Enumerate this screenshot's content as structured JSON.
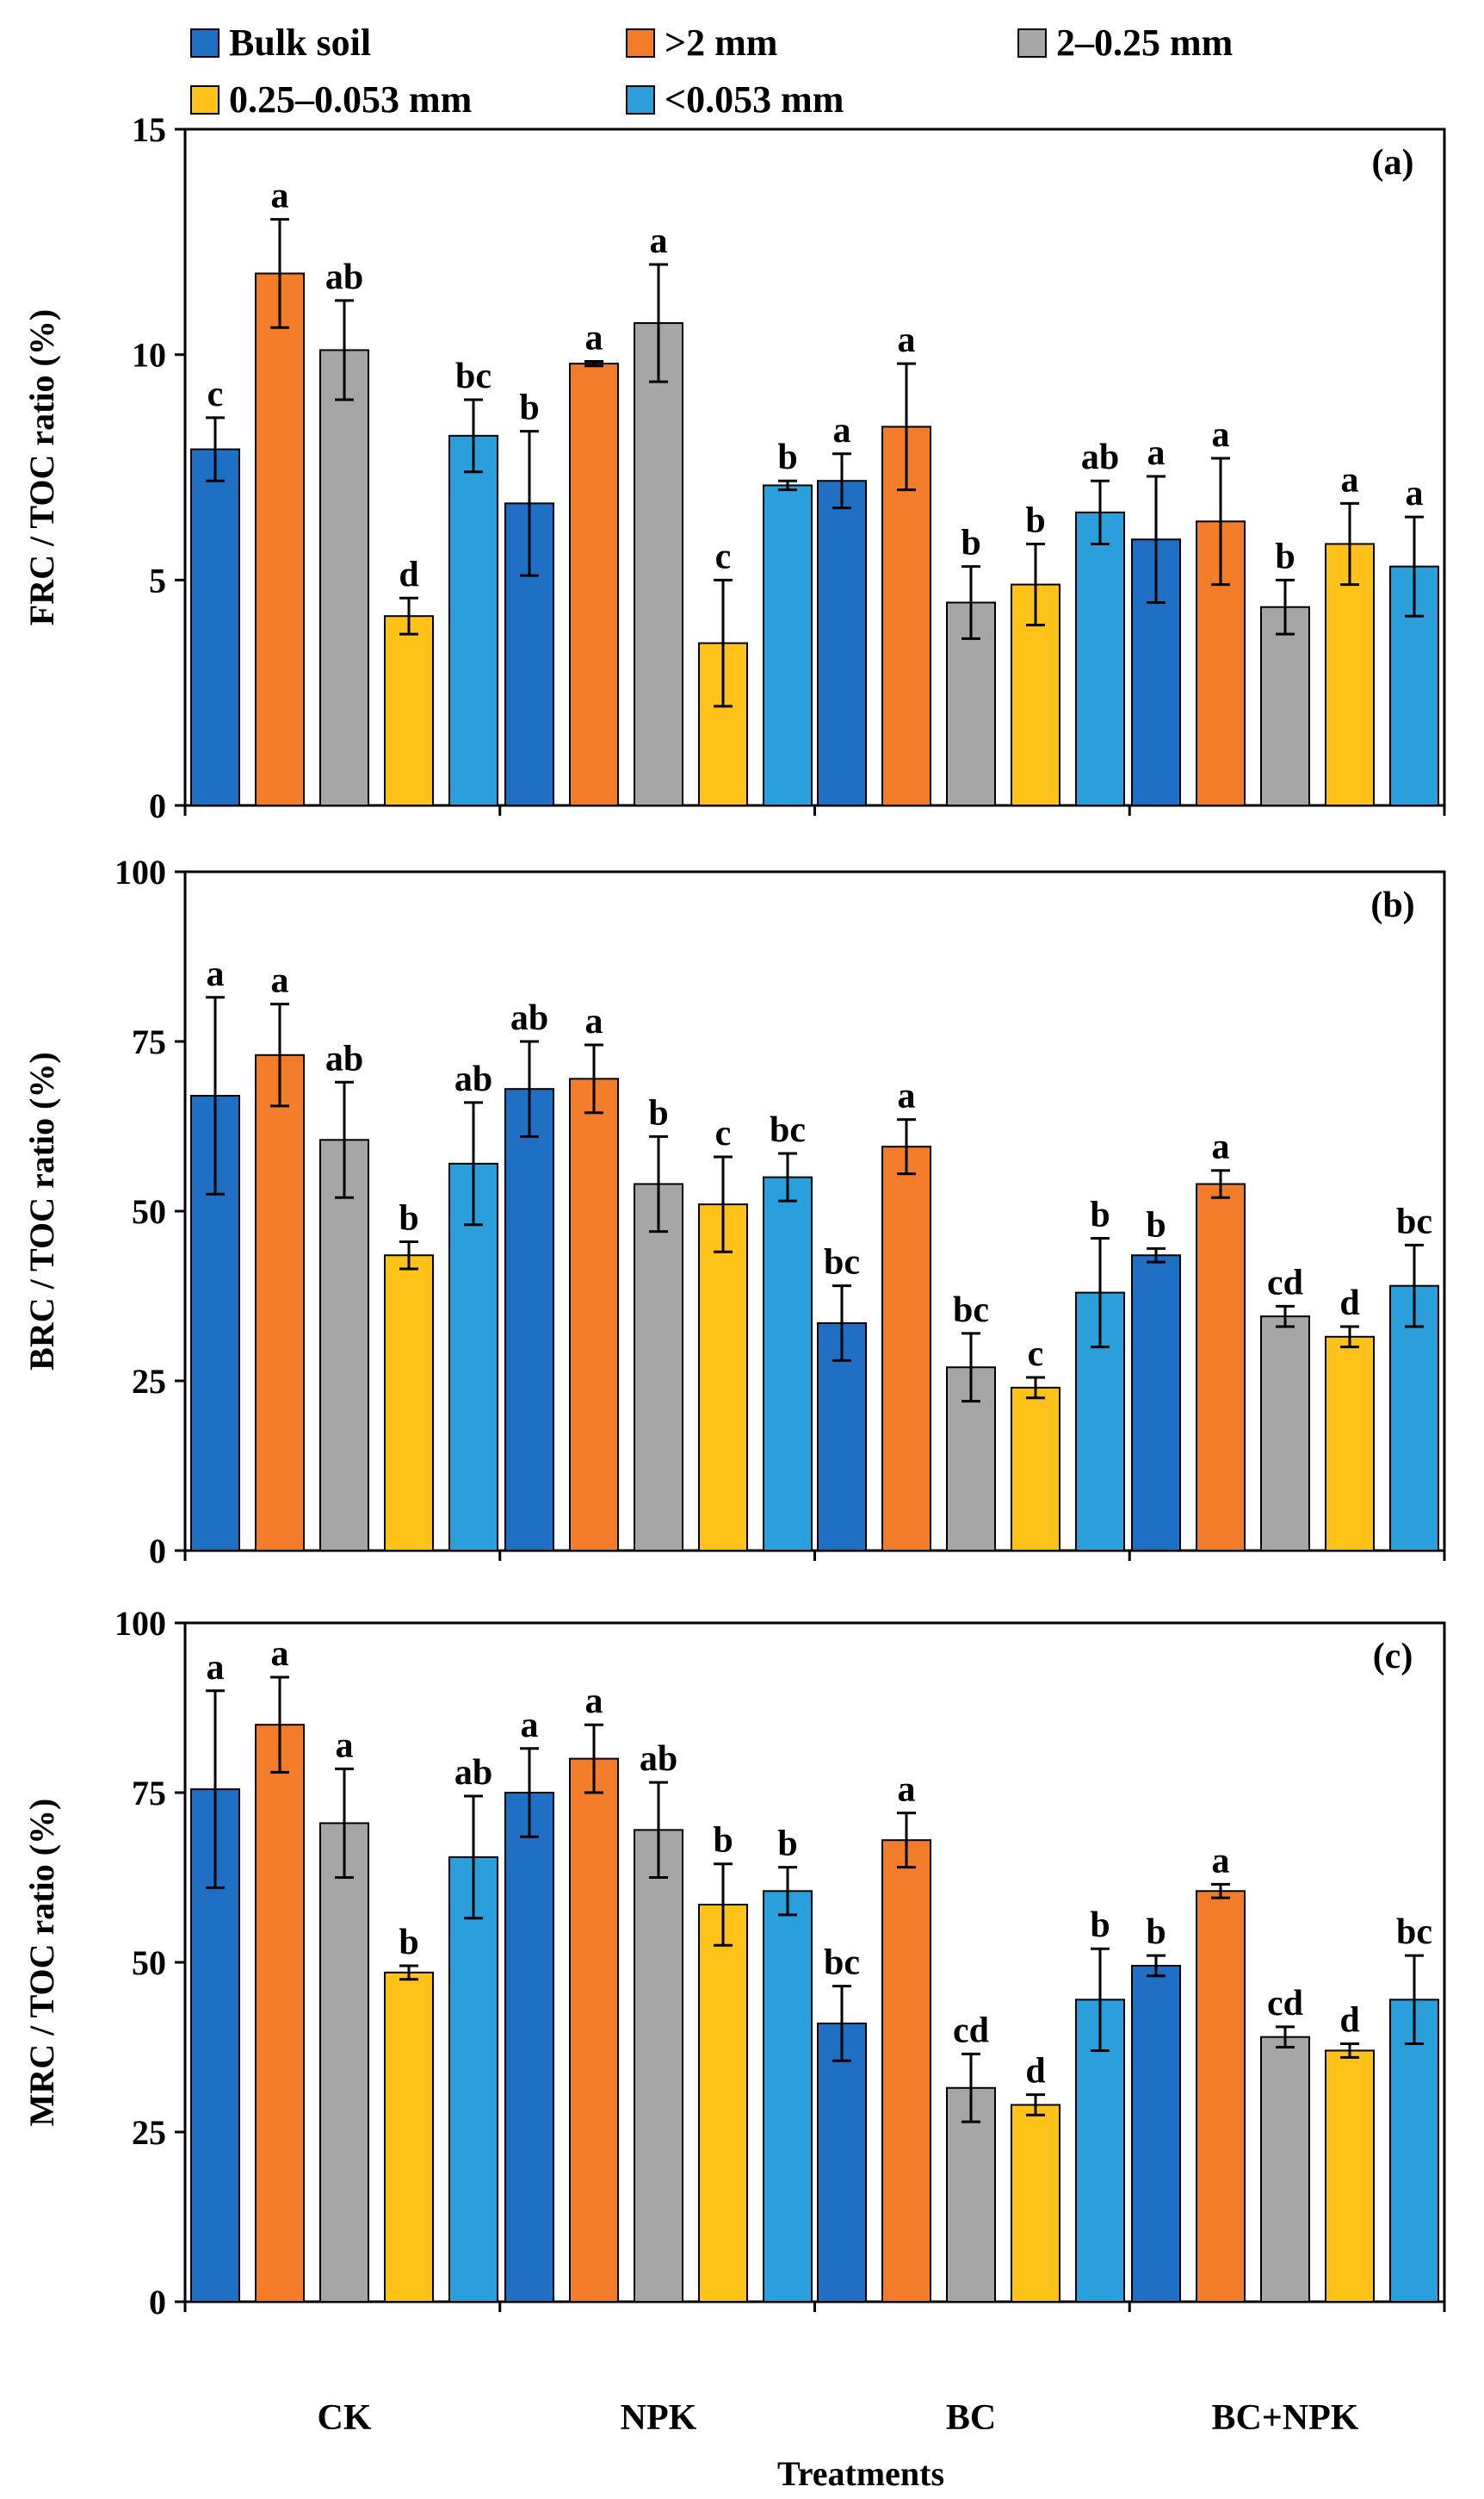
{
  "colors": {
    "bulk_soil": "#1F6FC5",
    "gt2mm": "#F27C2A",
    "mm2_025": "#A6A6A6",
    "mm025_0053": "#FFC218",
    "lt0053": "#2A9FDC"
  },
  "x_axis_title": "Treatments",
  "chart_data": [
    {
      "type": "bar",
      "panel_label": "(a)",
      "ylabel": "FRC / TOC ratio (%)",
      "ylim": [
        0,
        15
      ],
      "yticks": [
        0,
        5,
        10,
        15
      ],
      "categories": [
        "CK",
        "NPK",
        "BC",
        "BC+NPK"
      ],
      "series": [
        {
          "name": "Bulk soil",
          "color": "#1F6FC5",
          "values": [
            7.9,
            6.7,
            7.2,
            5.9
          ],
          "errors": [
            0.7,
            1.6,
            0.6,
            1.4
          ],
          "letters": [
            "c",
            "b",
            "a",
            "a"
          ]
        },
        {
          "name": ">2 mm",
          "color": "#F27C2A",
          "values": [
            11.8,
            9.8,
            8.4,
            6.3
          ],
          "errors": [
            1.2,
            0.05,
            1.4,
            1.4
          ],
          "letters": [
            "a",
            "a",
            "a",
            "a"
          ]
        },
        {
          "name": "2–0.25 mm",
          "color": "#A6A6A6",
          "values": [
            10.1,
            10.7,
            4.5,
            4.4
          ],
          "errors": [
            1.1,
            1.3,
            0.8,
            0.6
          ],
          "letters": [
            "ab",
            "a",
            "b",
            "b"
          ]
        },
        {
          "name": "0.25–0.053 mm",
          "color": "#FFC218",
          "values": [
            4.2,
            3.6,
            4.9,
            5.8
          ],
          "errors": [
            0.4,
            1.4,
            0.9,
            0.9
          ],
          "letters": [
            "d",
            "c",
            "b",
            "a"
          ]
        },
        {
          "name": "<0.053 mm",
          "color": "#2A9FDC",
          "values": [
            8.2,
            7.1,
            6.5,
            5.3
          ],
          "errors": [
            0.8,
            0.1,
            0.7,
            1.1
          ],
          "letters": [
            "bc",
            "b",
            "ab",
            "a"
          ]
        }
      ]
    },
    {
      "type": "bar",
      "panel_label": "(b)",
      "ylabel": "BRC / TOC ratio (%)",
      "ylim": [
        0,
        100
      ],
      "yticks": [
        0,
        25,
        50,
        75,
        100
      ],
      "categories": [
        "CK",
        "NPK",
        "BC",
        "BC+NPK"
      ],
      "series": [
        {
          "name": "Bulk soil",
          "color": "#1F6FC5",
          "values": [
            67,
            68,
            33.5,
            43.5
          ],
          "errors": [
            14.5,
            7,
            5.5,
            1
          ],
          "letters": [
            "a",
            "ab",
            "bc",
            "b"
          ]
        },
        {
          "name": ">2 mm",
          "color": "#F27C2A",
          "values": [
            73,
            69.5,
            59.5,
            54
          ],
          "errors": [
            7.5,
            5,
            4,
            2
          ],
          "letters": [
            "a",
            "a",
            "a",
            "a"
          ]
        },
        {
          "name": "2–0.25 mm",
          "color": "#A6A6A6",
          "values": [
            60.5,
            54,
            27,
            34.5
          ],
          "errors": [
            8.5,
            7,
            5,
            1.5
          ],
          "letters": [
            "ab",
            "b",
            "bc",
            "cd"
          ]
        },
        {
          "name": "0.25–0.053 mm",
          "color": "#FFC218",
          "values": [
            43.5,
            51,
            24,
            31.5
          ],
          "errors": [
            2,
            7,
            1.5,
            1.5
          ],
          "letters": [
            "b",
            "c",
            "c",
            "d"
          ]
        },
        {
          "name": "<0.053 mm",
          "color": "#2A9FDC",
          "values": [
            57,
            55,
            38,
            39
          ],
          "errors": [
            9,
            3.5,
            8,
            6
          ],
          "letters": [
            "ab",
            "bc",
            "b",
            "bc"
          ]
        }
      ]
    },
    {
      "type": "bar",
      "panel_label": "(c)",
      "ylabel": "MRC / TOC ratio (%)",
      "ylim": [
        0,
        100
      ],
      "yticks": [
        0,
        25,
        50,
        75,
        100
      ],
      "categories": [
        "CK",
        "NPK",
        "BC",
        "BC+NPK"
      ],
      "series": [
        {
          "name": "Bulk soil",
          "color": "#1F6FC5",
          "values": [
            75.5,
            75,
            41,
            49.5
          ],
          "errors": [
            14.5,
            6.5,
            5.5,
            1.5
          ],
          "letters": [
            "a",
            "a",
            "bc",
            "b"
          ]
        },
        {
          "name": ">2 mm",
          "color": "#F27C2A",
          "values": [
            85,
            80,
            68,
            60.5
          ],
          "errors": [
            7,
            5,
            4,
            1
          ],
          "letters": [
            "a",
            "a",
            "a",
            "a"
          ]
        },
        {
          "name": "2–0.25 mm",
          "color": "#A6A6A6",
          "values": [
            70.5,
            69.5,
            31.5,
            39
          ],
          "errors": [
            8,
            7,
            5,
            1.5
          ],
          "letters": [
            "a",
            "ab",
            "cd",
            "cd"
          ]
        },
        {
          "name": "0.25–0.053 mm",
          "color": "#FFC218",
          "values": [
            48.5,
            58.5,
            29,
            37
          ],
          "errors": [
            1,
            6,
            1.5,
            1
          ],
          "letters": [
            "b",
            "b",
            "d",
            "d"
          ]
        },
        {
          "name": "<0.053 mm",
          "color": "#2A9FDC",
          "values": [
            65.5,
            60.5,
            44.5,
            44.5
          ],
          "errors": [
            9,
            3.5,
            7.5,
            6.5
          ],
          "letters": [
            "ab",
            "b",
            "b",
            "bc"
          ]
        }
      ]
    }
  ]
}
